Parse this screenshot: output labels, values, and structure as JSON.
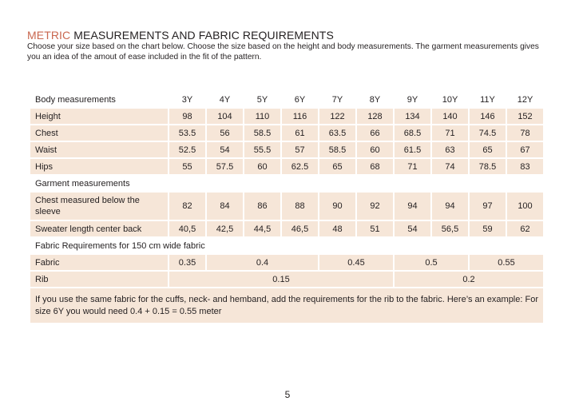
{
  "header": {
    "title_accent": "METRIC",
    "title_rest": " MEASUREMENTS AND FABRIC REQUIREMENTS",
    "intro": "Choose your size based on the chart below. Choose the size based on the height and body measurements. The garment measurements gives you an idea of the amout of ease included in the fit of the pattern."
  },
  "table": {
    "body_heading": "Body measurements",
    "sizes": [
      "3Y",
      "4Y",
      "5Y",
      "6Y",
      "7Y",
      "8Y",
      "9Y",
      "10Y",
      "11Y",
      "12Y"
    ],
    "body_rows": [
      {
        "label": "Height",
        "values": [
          "98",
          "104",
          "110",
          "116",
          "122",
          "128",
          "134",
          "140",
          "146",
          "152"
        ]
      },
      {
        "label": "Chest",
        "values": [
          "53.5",
          "56",
          "58.5",
          "61",
          "63.5",
          "66",
          "68.5",
          "71",
          "74.5",
          "78"
        ]
      },
      {
        "label": "Waist",
        "values": [
          "52.5",
          "54",
          "55.5",
          "57",
          "58.5",
          "60",
          "61.5",
          "63",
          "65",
          "67"
        ]
      },
      {
        "label": "Hips",
        "values": [
          "55",
          "57.5",
          "60",
          "62.5",
          "65",
          "68",
          "71",
          "74",
          "78.5",
          "83"
        ]
      }
    ],
    "garment_heading": "Garment measurements",
    "garment_rows": [
      {
        "label": "Chest measured below the sleeve",
        "values": [
          "82",
          "84",
          "86",
          "88",
          "90",
          "92",
          "94",
          "94",
          "97",
          "100"
        ]
      },
      {
        "label": "Sweater length center back",
        "values": [
          "40,5",
          "42,5",
          "44,5",
          "46,5",
          "48",
          "51",
          "54",
          "56,5",
          "59",
          "62"
        ]
      }
    ],
    "fabric_heading": "Fabric Requirements for 150 cm wide fabric",
    "fabric_row": {
      "label": "Fabric",
      "values": [
        "0.35",
        "0.4",
        "0.45",
        "0.5",
        "0.55"
      ]
    },
    "rib_row": {
      "label": "Rib",
      "values": [
        "0.15",
        "0.2"
      ]
    },
    "note": "If you use the same fabric for the cuffs, neck- and hemband, add the requirements for the rib to the fabric. Here’s an example: For size 6Y you would need 0.4 + 0.15 = 0.55 meter"
  },
  "footer": {
    "page_number": "5"
  },
  "colors": {
    "accent": "#c9674f",
    "cell_background": "#f6e6d8",
    "text": "#231f20"
  }
}
